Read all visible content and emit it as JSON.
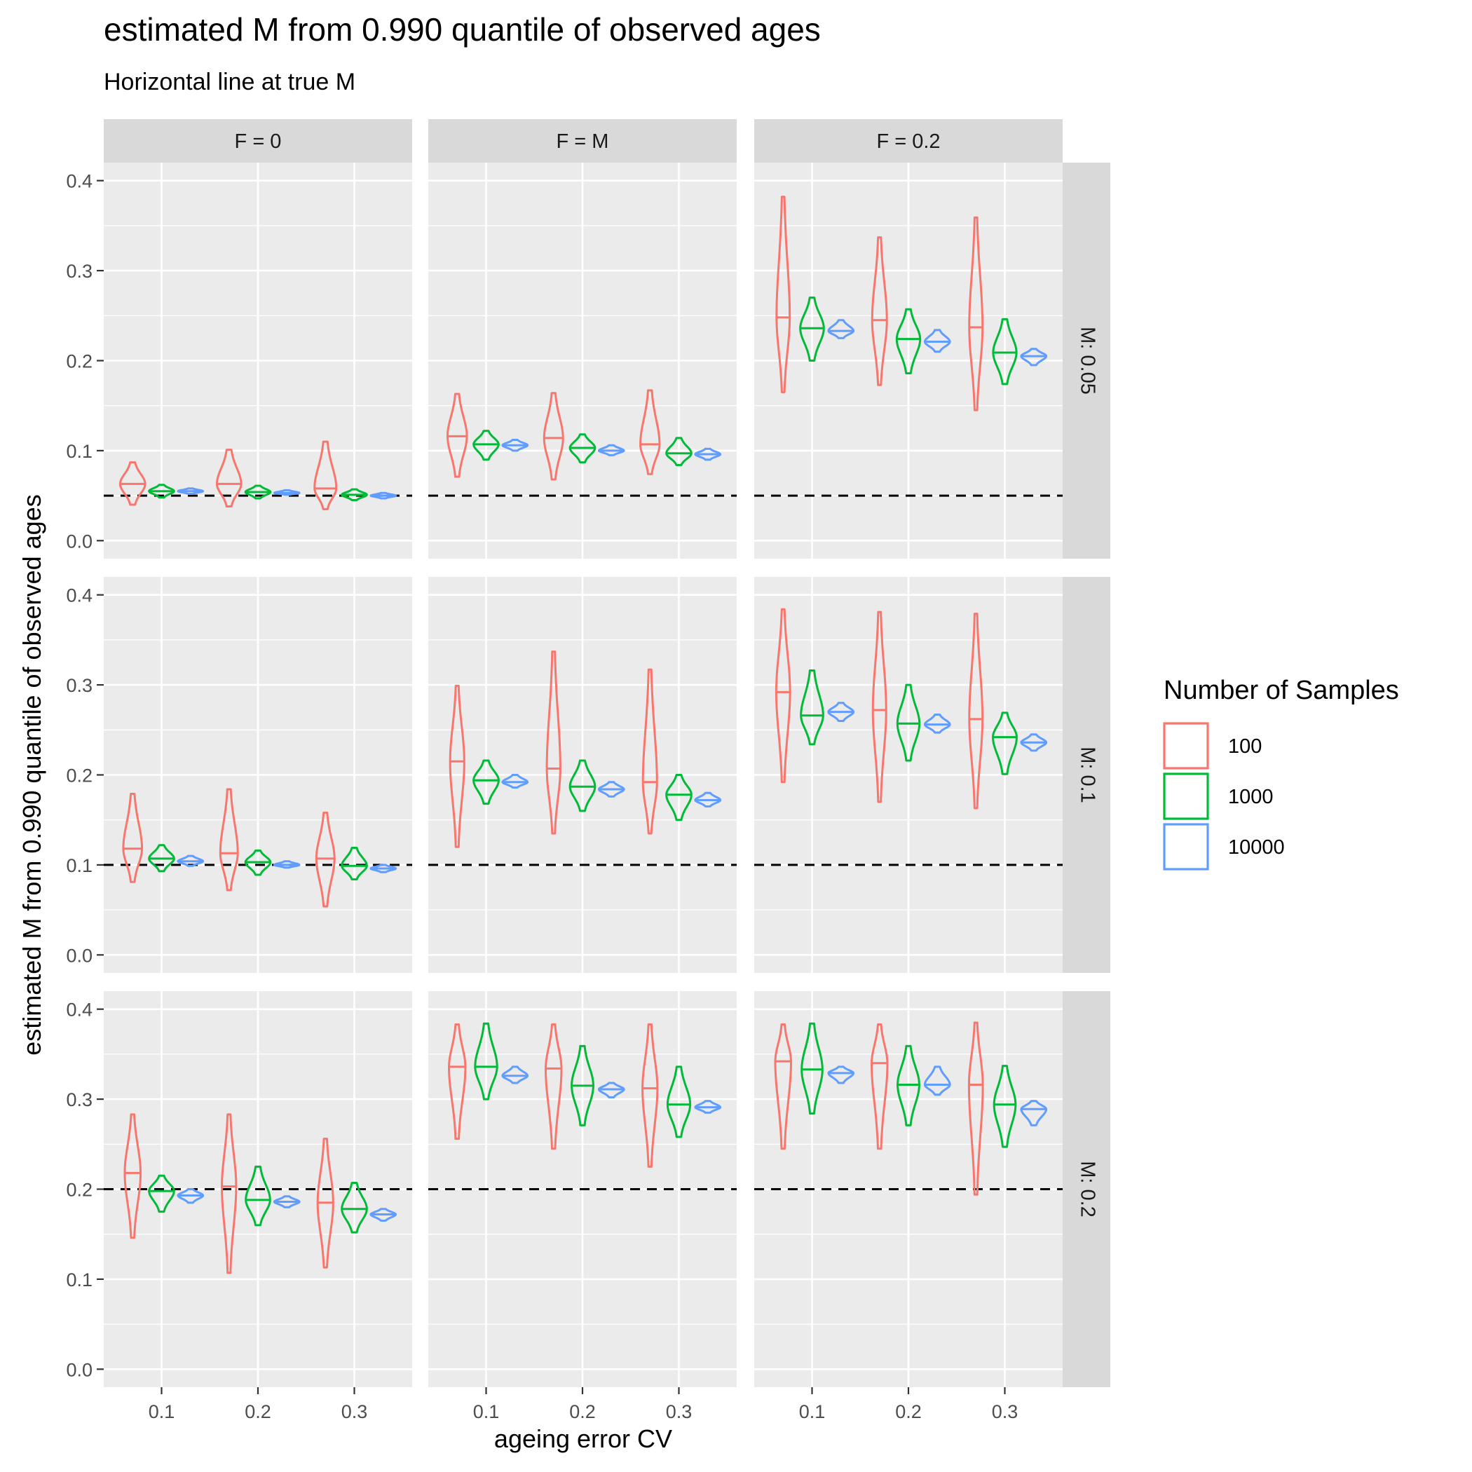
{
  "chart_data": {
    "type": "violin",
    "title": "estimated M from 0.990 quantile of observed ages",
    "subtitle": "Horizontal line at true M",
    "xlabel": "ageing error CV",
    "ylabel": "estimated M from 0.990 quantile of observed ages",
    "categories": [
      "0.1",
      "0.2",
      "0.3"
    ],
    "ylim": [
      0,
      0.4
    ],
    "y_ticks": [
      "0.0",
      "0.1",
      "0.2",
      "0.3",
      "0.4"
    ],
    "grid": true,
    "legend": {
      "title": "Number of Samples",
      "placement": "right",
      "entries": [
        "100",
        "1000",
        "10000"
      ]
    },
    "colors": {
      "100": "#F8766D",
      "1000": "#00BA38",
      "10000": "#619CFF"
    },
    "col_facets": [
      "F = 0",
      "F = M",
      "F = 0.2"
    ],
    "row_facets": [
      {
        "label": "M: 0.05",
        "true_M": 0.05
      },
      {
        "label": "M: 0.1",
        "true_M": 0.1
      },
      {
        "label": "M: 0.2",
        "true_M": 0.2
      }
    ],
    "series_note": "each value is [min, median, max] of estimated M",
    "panels": [
      {
        "row": "M: 0.05",
        "col": "F = 0",
        "values": {
          "100": [
            [
              0.04,
              0.063,
              0.087
            ],
            [
              0.038,
              0.063,
              0.101
            ],
            [
              0.035,
              0.058,
              0.11
            ]
          ],
          "1000": [
            [
              0.048,
              0.055,
              0.062
            ],
            [
              0.047,
              0.054,
              0.061
            ],
            [
              0.045,
              0.051,
              0.057
            ]
          ],
          "10000": [
            [
              0.052,
              0.055,
              0.058
            ],
            [
              0.051,
              0.053,
              0.056
            ],
            [
              0.047,
              0.05,
              0.053
            ]
          ]
        }
      },
      {
        "row": "M: 0.05",
        "col": "F = M",
        "values": {
          "100": [
            [
              0.071,
              0.116,
              0.163
            ],
            [
              0.068,
              0.114,
              0.164
            ],
            [
              0.074,
              0.107,
              0.167
            ]
          ],
          "1000": [
            [
              0.09,
              0.107,
              0.122
            ],
            [
              0.087,
              0.103,
              0.118
            ],
            [
              0.084,
              0.097,
              0.114
            ]
          ],
          "10000": [
            [
              0.1,
              0.106,
              0.112
            ],
            [
              0.095,
              0.1,
              0.106
            ],
            [
              0.09,
              0.096,
              0.102
            ]
          ]
        }
      },
      {
        "row": "M: 0.05",
        "col": "F = 0.2",
        "values": {
          "100": [
            [
              0.165,
              0.248,
              0.382
            ],
            [
              0.173,
              0.245,
              0.337
            ],
            [
              0.145,
              0.237,
              0.359
            ]
          ],
          "1000": [
            [
              0.2,
              0.236,
              0.27
            ],
            [
              0.186,
              0.224,
              0.257
            ],
            [
              0.174,
              0.209,
              0.246
            ]
          ],
          "10000": [
            [
              0.225,
              0.233,
              0.245
            ],
            [
              0.21,
              0.221,
              0.234
            ],
            [
              0.195,
              0.205,
              0.213
            ]
          ]
        }
      },
      {
        "row": "M: 0.1",
        "col": "F = 0",
        "values": {
          "100": [
            [
              0.081,
              0.118,
              0.179
            ],
            [
              0.072,
              0.113,
              0.184
            ],
            [
              0.054,
              0.107,
              0.158
            ]
          ],
          "1000": [
            [
              0.093,
              0.107,
              0.122
            ],
            [
              0.089,
              0.103,
              0.116
            ],
            [
              0.084,
              0.099,
              0.119
            ]
          ],
          "10000": [
            [
              0.099,
              0.104,
              0.11
            ],
            [
              0.097,
              0.1,
              0.104
            ],
            [
              0.092,
              0.096,
              0.1
            ]
          ]
        }
      },
      {
        "row": "M: 0.1",
        "col": "F = M",
        "values": {
          "100": [
            [
              0.12,
              0.215,
              0.299
            ],
            [
              0.135,
              0.207,
              0.337
            ],
            [
              0.135,
              0.192,
              0.317
            ]
          ],
          "1000": [
            [
              0.168,
              0.194,
              0.216
            ],
            [
              0.16,
              0.187,
              0.216
            ],
            [
              0.15,
              0.178,
              0.2
            ]
          ],
          "10000": [
            [
              0.186,
              0.192,
              0.2
            ],
            [
              0.176,
              0.184,
              0.192
            ],
            [
              0.165,
              0.172,
              0.18
            ]
          ]
        }
      },
      {
        "row": "M: 0.1",
        "col": "F = 0.2",
        "values": {
          "100": [
            [
              0.192,
              0.292,
              0.384
            ],
            [
              0.17,
              0.272,
              0.381
            ],
            [
              0.163,
              0.262,
              0.379
            ]
          ],
          "1000": [
            [
              0.234,
              0.266,
              0.316
            ],
            [
              0.216,
              0.257,
              0.3
            ],
            [
              0.201,
              0.242,
              0.269
            ]
          ],
          "10000": [
            [
              0.26,
              0.27,
              0.28
            ],
            [
              0.247,
              0.256,
              0.267
            ],
            [
              0.227,
              0.236,
              0.245
            ]
          ]
        }
      },
      {
        "row": "M: 0.2",
        "col": "F = 0",
        "values": {
          "100": [
            [
              0.146,
              0.218,
              0.283
            ],
            [
              0.107,
              0.203,
              0.283
            ],
            [
              0.113,
              0.185,
              0.256
            ]
          ],
          "1000": [
            [
              0.175,
              0.198,
              0.215
            ],
            [
              0.16,
              0.188,
              0.225
            ],
            [
              0.152,
              0.178,
              0.207
            ]
          ],
          "10000": [
            [
              0.185,
              0.193,
              0.2
            ],
            [
              0.18,
              0.186,
              0.192
            ],
            [
              0.165,
              0.172,
              0.178
            ]
          ]
        }
      },
      {
        "row": "M: 0.2",
        "col": "F = M",
        "values": {
          "100": [
            [
              0.256,
              0.336,
              0.383
            ],
            [
              0.245,
              0.334,
              0.383
            ],
            [
              0.225,
              0.312,
              0.383
            ]
          ],
          "1000": [
            [
              0.3,
              0.336,
              0.384
            ],
            [
              0.271,
              0.315,
              0.359
            ],
            [
              0.258,
              0.294,
              0.336
            ]
          ],
          "10000": [
            [
              0.318,
              0.326,
              0.336
            ],
            [
              0.302,
              0.311,
              0.318
            ],
            [
              0.285,
              0.291,
              0.298
            ]
          ]
        }
      },
      {
        "row": "M: 0.2",
        "col": "F = 0.2",
        "values": {
          "100": [
            [
              0.245,
              0.342,
              0.383
            ],
            [
              0.245,
              0.34,
              0.383
            ],
            [
              0.194,
              0.316,
              0.385
            ]
          ],
          "1000": [
            [
              0.284,
              0.333,
              0.384
            ],
            [
              0.271,
              0.316,
              0.359
            ],
            [
              0.247,
              0.294,
              0.337
            ]
          ],
          "10000": [
            [
              0.318,
              0.329,
              0.336
            ],
            [
              0.305,
              0.316,
              0.336
            ],
            [
              0.271,
              0.289,
              0.298
            ]
          ]
        }
      }
    ]
  }
}
